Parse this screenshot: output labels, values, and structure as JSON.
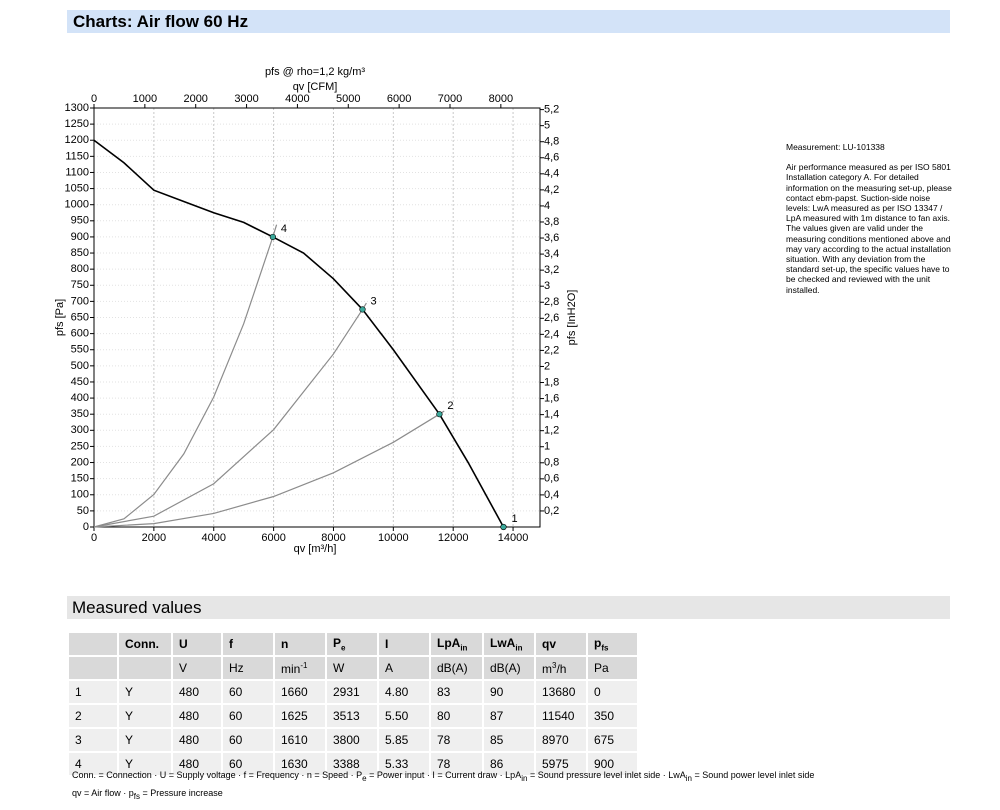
{
  "header": {
    "title": "Charts: Air flow 60 Hz"
  },
  "chart_data": {
    "type": "line",
    "title": "pfs @ rho=1,2 kg/m³",
    "xlabel": "qv [m³/h]",
    "x2label": "qv [CFM]",
    "ylabel": "pfs [Pa]",
    "y2label": "pfs [InH2O]",
    "xlim": [
      0,
      14900
    ],
    "xticks": [
      0,
      2000,
      4000,
      6000,
      8000,
      10000,
      12000,
      14000
    ],
    "x2lim": [
      0,
      8770
    ],
    "x2ticks": [
      0,
      1000,
      2000,
      3000,
      4000,
      5000,
      6000,
      7000,
      8000
    ],
    "ylim": [
      0,
      1300
    ],
    "yticks": [
      0,
      50,
      100,
      150,
      200,
      250,
      300,
      350,
      400,
      450,
      500,
      550,
      600,
      650,
      700,
      750,
      800,
      850,
      900,
      950,
      1000,
      1050,
      1100,
      1150,
      1200,
      1250,
      1300
    ],
    "y2lim": [
      0,
      5.22
    ],
    "y2ticks": [
      {
        "value": 0.2,
        "label": "0,2"
      },
      {
        "value": 0.4,
        "label": "0,4"
      },
      {
        "value": 0.6,
        "label": "0,6"
      },
      {
        "value": 0.8,
        "label": "0,8"
      },
      1,
      {
        "value": 1.2,
        "label": "1,2"
      },
      {
        "value": 1.4,
        "label": "1,4"
      },
      {
        "value": 1.6,
        "label": "1,6"
      },
      {
        "value": 1.8,
        "label": "1,8"
      },
      2,
      {
        "value": 2.2,
        "label": "2,2"
      },
      {
        "value": 2.4,
        "label": "2,4"
      },
      {
        "value": 2.6,
        "label": "2,6"
      },
      {
        "value": 2.8,
        "label": "2,8"
      },
      3,
      {
        "value": 3.2,
        "label": "3,2"
      },
      {
        "value": 3.4,
        "label": "3,4"
      },
      {
        "value": 3.6,
        "label": "3,6"
      },
      {
        "value": 3.8,
        "label": "3,8"
      },
      4,
      {
        "value": 4.2,
        "label": "4,2"
      },
      {
        "value": 4.4,
        "label": "4,4"
      },
      {
        "value": 4.6,
        "label": "4,6"
      },
      {
        "value": 4.8,
        "label": "4,8"
      },
      5,
      {
        "value": 5.2,
        "label": "5,2"
      }
    ],
    "grid": true,
    "series": [
      {
        "color": "#000000",
        "x": [
          0,
          1000,
          2000,
          3000,
          4000,
          5000,
          5975,
          7000,
          8000,
          8970,
          10000,
          11540,
          12500,
          13680
        ],
        "values": [
          1200,
          1130,
          1045,
          1010,
          975,
          945,
          900,
          850,
          770,
          675,
          550,
          350,
          200,
          0
        ]
      },
      {
        "color": "#8c8c8c",
        "x": [
          0,
          1000,
          2000,
          3000,
          4000,
          5000,
          5975,
          6100
        ],
        "values": [
          0,
          25.2,
          100.8,
          226.9,
          403.4,
          630.3,
          900,
          938
        ]
      },
      {
        "color": "#8c8c8c",
        "x": [
          0,
          2000,
          4000,
          6000,
          8000,
          8970,
          9100
        ],
        "values": [
          0,
          33.6,
          134.2,
          302.0,
          536.9,
          675,
          694.7
        ]
      },
      {
        "color": "#8c8c8c",
        "x": [
          0,
          2000,
          4000,
          6000,
          8000,
          10000,
          11540,
          11700
        ],
        "values": [
          0,
          10.5,
          42.1,
          94.6,
          168.2,
          262.8,
          350,
          359.8
        ]
      }
    ],
    "points": {
      "color": "#3aa89a",
      "x": [
        13680,
        11540,
        8970,
        5975
      ],
      "values": [
        0,
        350,
        675,
        900
      ],
      "labels": [
        "1",
        "2",
        "3",
        "4"
      ]
    }
  },
  "measurement": {
    "id": "Measurement: LU-101338",
    "text": "Air performance measured as per ISO 5801 Installation category A. For detailed information on the measuring set-up, please contact ebm-papst. Suction-side noise levels: LwA measured as per ISO 13347 / LpA measured with 1m distance to fan axis. The values given are valid under the measuring conditions mentioned above and may vary according to the actual installation situation. With any deviation from the standard set-up, the specific values have to be checked and reviewed with the unit installed."
  },
  "measured_values": {
    "title": "Measured values",
    "header": [
      null,
      "Conn.",
      "U",
      "f",
      "n",
      {
        "main": "P",
        "sub": "e"
      },
      "I",
      {
        "main": "LpA",
        "sub": "in"
      },
      {
        "main": "LwA",
        "sub": "in"
      },
      "qv",
      {
        "main": "p",
        "sub": "fs"
      }
    ],
    "units": [
      null,
      null,
      "V",
      "Hz",
      {
        "main": "min",
        "sup": "-1"
      },
      "W",
      "A",
      "dB(A)",
      "dB(A)",
      {
        "main": "m",
        "sup": "3",
        "after": "/h"
      },
      "Pa"
    ],
    "rows": [
      [
        "1",
        "Y",
        "480",
        "60",
        "1660",
        "2931",
        "4.80",
        "83",
        "90",
        "13680",
        "0"
      ],
      [
        "2",
        "Y",
        "480",
        "60",
        "1625",
        "3513",
        "5.50",
        "80",
        "87",
        "11540",
        "350"
      ],
      [
        "3",
        "Y",
        "480",
        "60",
        "1610",
        "3800",
        "5.85",
        "78",
        "85",
        "8970",
        "675"
      ],
      [
        "4",
        "Y",
        "480",
        "60",
        "1630",
        "3388",
        "5.33",
        "78",
        "86",
        "5975",
        "900"
      ]
    ],
    "footnote": [
      [
        {
          "t": "Conn. = Connection · U = Supply voltage · f = Frequency · n = Speed · P"
        },
        {
          "sub": "e"
        },
        {
          "t": " = Power input · I = Current draw · LpA"
        },
        {
          "sub": "in"
        },
        {
          "t": " = Sound pressure level inlet side · LwA"
        },
        {
          "sub": "in"
        },
        {
          "t": " = Sound power level inlet side"
        }
      ],
      [
        {
          "t": "qv = Air flow · p"
        },
        {
          "sub": "fs"
        },
        {
          "t": " = Pressure increase"
        }
      ]
    ]
  }
}
